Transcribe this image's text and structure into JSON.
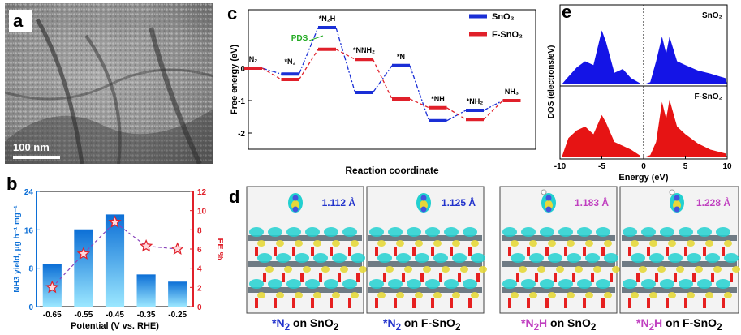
{
  "panels": {
    "a": {
      "label": "a",
      "scale_bar": "100 nm"
    },
    "b": {
      "label": "b",
      "chart_data": {
        "type": "bar",
        "categories": [
          "-0.65",
          "-0.55",
          "-0.45",
          "-0.35",
          "-0.25"
        ],
        "series": [
          {
            "name": "NH3 yield",
            "values": [
              8.8,
              16.1,
              19.2,
              6.7,
              5.2
            ]
          },
          {
            "name": "FE",
            "values": [
              2.0,
              5.5,
              8.8,
              6.3,
              6.0
            ]
          }
        ],
        "xlabel": "Potential (V vs. RHE)",
        "ylabel_left": "NH3 yield, μg h⁻¹ mg⁻¹",
        "ylabel_right": "FE %",
        "ylim_left": [
          0,
          24
        ],
        "ylim_right": [
          0,
          12
        ],
        "yticks_left": [
          "0",
          "8",
          "16",
          "24"
        ],
        "yticks_right": [
          "0",
          "2",
          "4",
          "6",
          "8",
          "10",
          "12"
        ],
        "colors": {
          "bar_top": "#0c6fd6",
          "bar_bottom": "#9be7ff",
          "fe": "#e0202a",
          "line": "#8844bb"
        }
      }
    },
    "c": {
      "label": "c",
      "chart_data": {
        "type": "line",
        "xlabel": "Reaction coordinate",
        "ylabel": "Free energy (eV)",
        "ylim": [
          -2.5,
          1.8
        ],
        "yticks": [
          "0",
          "-1",
          "-2"
        ],
        "steps": [
          "N2",
          "*N2",
          "*N2H",
          "*NNH2",
          "*N",
          "*NH",
          "*NH2",
          "NH3"
        ],
        "step_labels": [
          {
            "text": "N₂",
            "step": 0
          },
          {
            "text": "*N₂",
            "step": 1
          },
          {
            "text": "*N₂H",
            "step": 2
          },
          {
            "text": "*NNH₂",
            "step": 3
          },
          {
            "text": "*N",
            "step": 4
          },
          {
            "text": "*NH",
            "step": 5
          },
          {
            "text": "*NH₂",
            "step": 6
          },
          {
            "text": "NH₃",
            "step": 7
          }
        ],
        "series": [
          {
            "name": "SnO₂",
            "color": "#1a2fd6",
            "values": [
              0,
              -0.18,
              1.25,
              -0.75,
              0.08,
              -1.62,
              -1.3,
              -1.0
            ]
          },
          {
            "name": "F-SnO₂",
            "color": "#e0202a",
            "values": [
              0,
              -0.35,
              0.58,
              0.27,
              -0.95,
              -1.22,
              -1.58,
              -1.0
            ]
          }
        ],
        "annotation": "PDS",
        "annotation_color": "#22aa22"
      }
    },
    "d": {
      "label": "d",
      "bond_lengths": [
        "1.112 Å",
        "1.125 Å",
        "1.183 Å",
        "1.228 Å"
      ],
      "bond_colors": [
        "#2233cc",
        "#2233cc",
        "#c040c0",
        "#c040c0"
      ],
      "captions": [
        {
          "prefix": "*N",
          "sub": "2",
          "rest": " on SnO",
          "sub2": "2",
          "color": "#2233cc"
        },
        {
          "prefix": "*N",
          "sub": "2",
          "rest": " on F-SnO",
          "sub2": "2",
          "color": "#2233cc"
        },
        {
          "prefix": "*N",
          "sub": "2",
          "mid": "H",
          "rest": " on SnO",
          "sub2": "2",
          "color": "#c040c0"
        },
        {
          "prefix": "*N",
          "sub": "2",
          "mid": "H",
          "rest": " on F-SnO",
          "sub2": "2",
          "color": "#c040c0"
        }
      ]
    },
    "e": {
      "label": "e",
      "chart_data": {
        "type": "area",
        "xlabel": "Energy (eV)",
        "ylabel": "DOS (electrons/eV)",
        "xlim": [
          -10,
          10
        ],
        "xticks": [
          "-10",
          "-5",
          "0",
          "5",
          "10"
        ],
        "series": [
          {
            "name": "SnO₂",
            "color": "#1414e6"
          },
          {
            "name": "F-SnO₂",
            "color": "#e61414"
          }
        ]
      }
    }
  }
}
